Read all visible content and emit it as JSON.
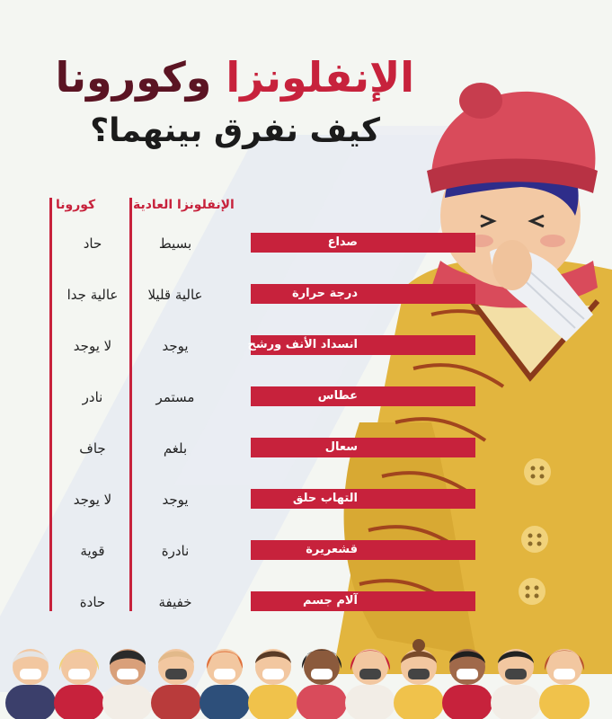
{
  "title": {
    "part_red": "الإنفلونزا",
    "part_dark": "وكورونا"
  },
  "subtitle": "كيف نفرق بينهما؟",
  "columns": {
    "corona_header": "كورونا",
    "flu_header": "الإنفلونزا العادية"
  },
  "rows": [
    {
      "symptom": "صداع",
      "flu": "بسيط",
      "corona": "حاد"
    },
    {
      "symptom": "درجة حرارة",
      "flu": "عالية قليلا",
      "corona": "عالية جدا"
    },
    {
      "symptom": "انسداد الأنف ورشح",
      "flu": "يوجد",
      "corona": "لا يوجد"
    },
    {
      "symptom": "عطاس",
      "flu": "مستمر",
      "corona": "نادر"
    },
    {
      "symptom": "سعال",
      "flu": "بلغم",
      "corona": "جاف"
    },
    {
      "symptom": "التهاب حلق",
      "flu": "يوجد",
      "corona": "لا يوجد"
    },
    {
      "symptom": "قشعريرة",
      "flu": "نادرة",
      "corona": "قوية"
    },
    {
      "symptom": "آلام جسم",
      "flu": "خفيفة",
      "corona": "حادة"
    }
  ],
  "colors": {
    "accent": "#c7223c",
    "dark": "#5b1423",
    "coat": "#e2b53e",
    "hat": "#d94b5b",
    "background": "#f4f6f2"
  },
  "illustration": {
    "main": "sneezing-person-with-tissue",
    "footer": "row-of-people-wearing-masks"
  }
}
